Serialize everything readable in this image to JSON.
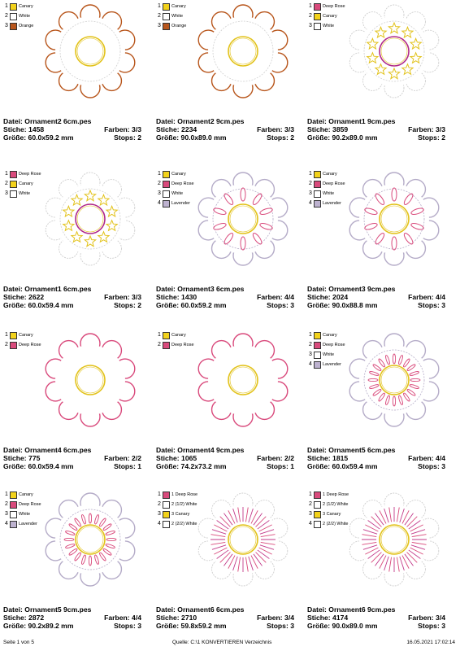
{
  "colors": {
    "Canary": "#f2d21b",
    "White": "#ffffff",
    "Orange": "#b8561c",
    "Deep Rose": "#d94a7c",
    "Lavender": "#bdb2cf"
  },
  "cells": [
    {
      "legend": [
        {
          "n": "1",
          "name": "Canary",
          "c": "#f2d21b"
        },
        {
          "n": "2",
          "name": "White",
          "c": "#ffffff"
        },
        {
          "n": "3",
          "name": "Orange",
          "c": "#b8561c"
        }
      ],
      "file": "Datei: Ornament2 6cm.pes",
      "stitches": "Stiche: 1458",
      "colors": "Farben: 3/3",
      "size": "Größe: 60.0x59.2 mm",
      "stops": "Stops: 2",
      "fig": {
        "petal": "#b8561c",
        "inner": "#cfcfcf",
        "center": "#e2c21a",
        "star": false,
        "sun": false,
        "ovals": false,
        "loops": false,
        "petals": 10
      }
    },
    {
      "legend": [
        {
          "n": "1",
          "name": "Canary",
          "c": "#f2d21b"
        },
        {
          "n": "2",
          "name": "White",
          "c": "#ffffff"
        },
        {
          "n": "3",
          "name": "Orange",
          "c": "#b8561c"
        }
      ],
      "file": "Datei: Ornament2 9cm.pes",
      "stitches": "Stiche: 2234",
      "colors": "Farben: 3/3",
      "size": "Größe: 90.0x89.0 mm",
      "stops": "Stops: 2",
      "fig": {
        "petal": "#b8561c",
        "inner": "#cfcfcf",
        "center": "#e2c21a",
        "star": false,
        "sun": false,
        "ovals": false,
        "loops": false,
        "petals": 10
      }
    },
    {
      "legend": [
        {
          "n": "1",
          "name": "Deep Rose",
          "c": "#d94a7c"
        },
        {
          "n": "2",
          "name": "Canary",
          "c": "#f2d21b"
        },
        {
          "n": "3",
          "name": "White",
          "c": "#ffffff"
        }
      ],
      "file": "Datei: Ornament1 9cm.pes",
      "stitches": "Stiche: 3859",
      "colors": "Farben: 3/3",
      "size": "Größe: 90.2x89.0 mm",
      "stops": "Stops: 2",
      "fig": {
        "petal": "#cfcfcf",
        "inner": "#cfcfcf",
        "center": "#b02a8a",
        "star": true,
        "sun": false,
        "ovals": false,
        "loops": false,
        "petals": 10
      }
    },
    {
      "legend": [
        {
          "n": "1",
          "name": "Deep Rose",
          "c": "#d94a7c"
        },
        {
          "n": "2",
          "name": "Canary",
          "c": "#f2d21b"
        },
        {
          "n": "3",
          "name": "White",
          "c": "#ffffff"
        }
      ],
      "file": "Datei: Ornament1 6cm.pes",
      "stitches": "Stiche: 2622",
      "colors": "Farben: 3/3",
      "size": "Größe: 60.0x59.4 mm",
      "stops": "Stops: 2",
      "fig": {
        "petal": "#cfcfcf",
        "inner": "#cfcfcf",
        "center": "#b02a8a",
        "star": true,
        "sun": false,
        "ovals": false,
        "loops": false,
        "petals": 10
      }
    },
    {
      "legend": [
        {
          "n": "1",
          "name": "Canary",
          "c": "#f2d21b"
        },
        {
          "n": "2",
          "name": "Deep Rose",
          "c": "#d94a7c"
        },
        {
          "n": "3",
          "name": "White",
          "c": "#ffffff"
        },
        {
          "n": "4",
          "name": "Lavender",
          "c": "#bdb2cf"
        }
      ],
      "file": "Datei: Ornament3 6cm.pes",
      "stitches": "Stiche: 1430",
      "colors": "Farben: 4/4",
      "size": "Größe: 60.0x59.2 mm",
      "stops": "Stops: 3",
      "fig": {
        "petal": "#b5acc8",
        "inner": "#b5acc8",
        "center": "#e2c21a",
        "star": false,
        "sun": false,
        "ovals": true,
        "loops": false,
        "petals": 10
      }
    },
    {
      "legend": [
        {
          "n": "1",
          "name": "Canary",
          "c": "#f2d21b"
        },
        {
          "n": "2",
          "name": "Deep Rose",
          "c": "#d94a7c"
        },
        {
          "n": "3",
          "name": "White",
          "c": "#ffffff"
        },
        {
          "n": "4",
          "name": "Lavender",
          "c": "#bdb2cf"
        }
      ],
      "file": "Datei: Ornament3 9cm.pes",
      "stitches": "Stiche: 2024",
      "colors": "Farben: 4/4",
      "size": "Größe: 90.0x88.8 mm",
      "stops": "Stops: 3",
      "fig": {
        "petal": "#b5acc8",
        "inner": "#b5acc8",
        "center": "#e2c21a",
        "star": false,
        "sun": false,
        "ovals": true,
        "loops": false,
        "petals": 10
      }
    },
    {
      "legend": [
        {
          "n": "1",
          "name": "Canary",
          "c": "#f2d21b"
        },
        {
          "n": "2",
          "name": "Deep Rose",
          "c": "#d94a7c"
        }
      ],
      "file": "Datei: Ornament4 6cm.pes",
      "stitches": "Stiche: 775",
      "colors": "Farben: 2/2",
      "size": "Größe: 60.0x59.4 mm",
      "stops": "Stops: 1",
      "fig": {
        "petal": "#d94a7c",
        "inner": "#d94a7c",
        "center": "#e2c21a",
        "star": false,
        "sun": false,
        "ovals": false,
        "loops": false,
        "petals": 10,
        "noinner": true
      }
    },
    {
      "legend": [
        {
          "n": "1",
          "name": "Canary",
          "c": "#f2d21b"
        },
        {
          "n": "2",
          "name": "Deep Rose",
          "c": "#d94a7c"
        }
      ],
      "file": "Datei: Ornament4 9cm.pes",
      "stitches": "Stiche: 1065",
      "colors": "Farben: 2/2",
      "size": "Größe: 74.2x73.2 mm",
      "stops": "Stops: 1",
      "fig": {
        "petal": "#d94a7c",
        "inner": "#d94a7c",
        "center": "#e2c21a",
        "star": false,
        "sun": false,
        "ovals": false,
        "loops": false,
        "petals": 10,
        "noinner": true
      }
    },
    {
      "legend": [
        {
          "n": "1",
          "name": "Canary",
          "c": "#f2d21b"
        },
        {
          "n": "2",
          "name": "Deep Rose",
          "c": "#d94a7c"
        },
        {
          "n": "3",
          "name": "White",
          "c": "#ffffff"
        },
        {
          "n": "4",
          "name": "Lavender",
          "c": "#bdb2cf"
        }
      ],
      "file": "Datei: Ornament5 6cm.pes",
      "stitches": "Stiche: 1815",
      "colors": "Farben: 4/4",
      "size": "Größe: 60.0x59.4 mm",
      "stops": "Stops: 3",
      "fig": {
        "petal": "#b5acc8",
        "inner": "#b5acc8",
        "center": "#e2c21a",
        "star": false,
        "sun": false,
        "ovals": false,
        "loops": true,
        "petals": 10
      }
    },
    {
      "legend": [
        {
          "n": "1",
          "name": "Canary",
          "c": "#f2d21b"
        },
        {
          "n": "2",
          "name": "Deep Rose",
          "c": "#d94a7c"
        },
        {
          "n": "3",
          "name": "White",
          "c": "#ffffff"
        },
        {
          "n": "4",
          "name": "Lavender",
          "c": "#bdb2cf"
        }
      ],
      "file": "Datei: Ornament5 9cm.pes",
      "stitches": "Stiche: 2872",
      "colors": "Farben: 4/4",
      "size": "Größe: 90.2x89.2 mm",
      "stops": "Stops: 3",
      "fig": {
        "petal": "#b5acc8",
        "inner": "#b5acc8",
        "center": "#e2c21a",
        "star": false,
        "sun": false,
        "ovals": false,
        "loops": true,
        "petals": 10
      }
    },
    {
      "legend": [
        {
          "n": "1",
          "name": "1 Deep Rose",
          "c": "#d94a7c"
        },
        {
          "n": "2",
          "name": "2 (1/2) White",
          "c": "#ffffff"
        },
        {
          "n": "3",
          "name": "3 Canary",
          "c": "#f2d21b"
        },
        {
          "n": "4",
          "name": "2 (2/2) White",
          "c": "#ffffff"
        }
      ],
      "file": "Datei: Ornament6 6cm.pes",
      "stitches": "Stiche: 2710",
      "colors": "Farben: 3/4",
      "size": "Größe: 59.8x59.2 mm",
      "stops": "Stops: 3",
      "fig": {
        "petal": "#cfcfcf",
        "inner": "#cfcfcf",
        "center": "#e2c21a",
        "star": false,
        "sun": true,
        "ovals": false,
        "loops": false,
        "petals": 10,
        "noinner": true
      }
    },
    {
      "legend": [
        {
          "n": "1",
          "name": "1 Deep Rose",
          "c": "#d94a7c"
        },
        {
          "n": "2",
          "name": "2 (1/2) White",
          "c": "#ffffff"
        },
        {
          "n": "3",
          "name": "3 Canary",
          "c": "#f2d21b"
        },
        {
          "n": "4",
          "name": "2 (2/2) White",
          "c": "#ffffff"
        }
      ],
      "file": "Datei: Ornament6 9cm.pes",
      "stitches": "Stiche: 4174",
      "colors": "Farben: 3/4",
      "size": "Größe: 90.0x89.0 mm",
      "stops": "Stops: 3",
      "fig": {
        "petal": "#cfcfcf",
        "inner": "#cfcfcf",
        "center": "#e2c21a",
        "star": false,
        "sun": true,
        "ovals": false,
        "loops": false,
        "petals": 10,
        "noinner": true
      }
    }
  ],
  "footer": {
    "page": "Seite 1 von 5",
    "source": "Quelle: C:\\1 KONVERTIEREN Verzeichnis",
    "datetime": "16.05.2021 17:02:14"
  }
}
